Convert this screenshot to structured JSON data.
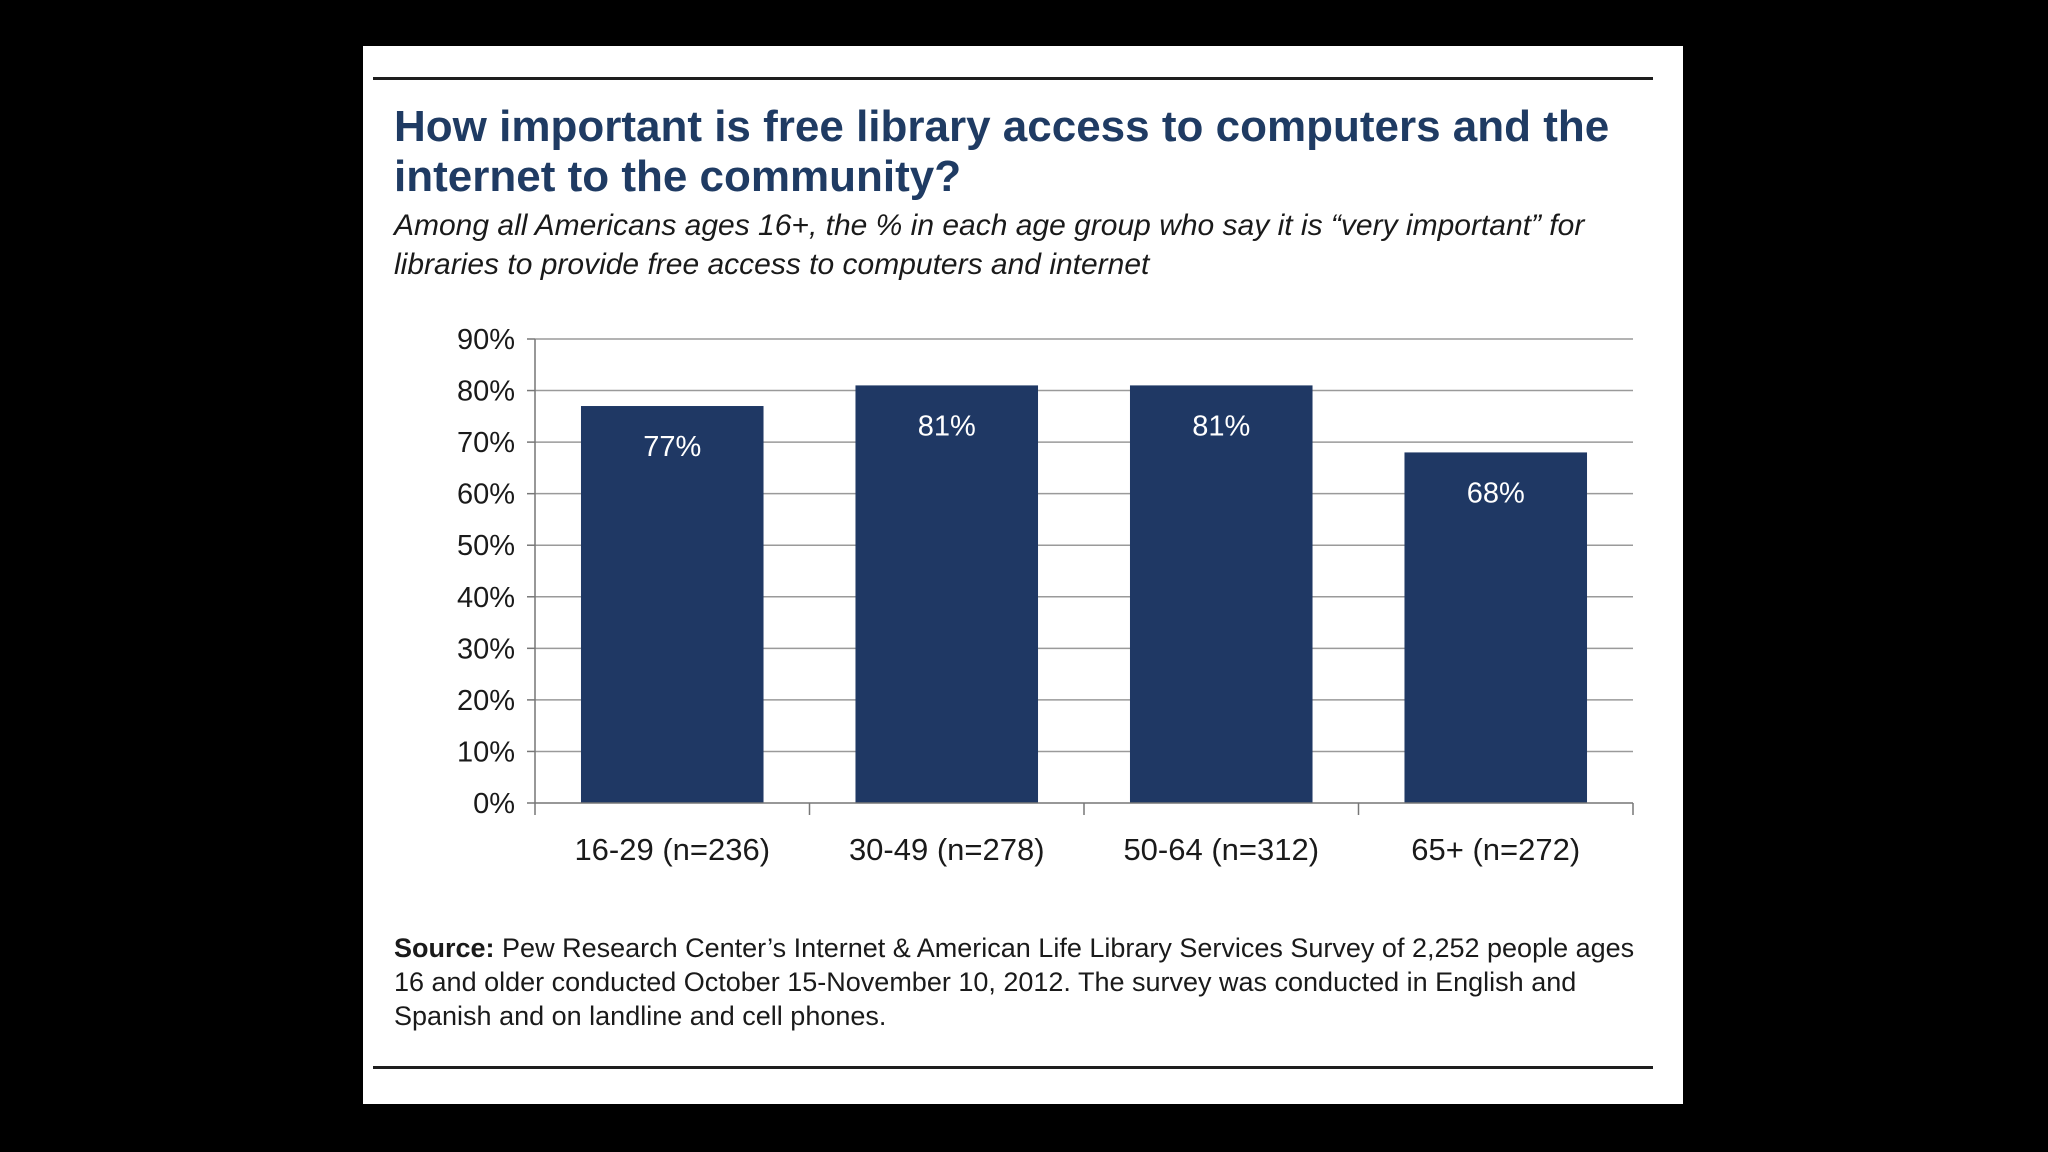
{
  "title": "How important is free library access to computers and the internet to the community?",
  "subtitle": "Among all Americans ages 16+, the % in each age group who say it is “very important” for libraries to provide free access to computers and internet",
  "source": {
    "label": "Source:",
    "text": "Pew Research Center’s Internet & American Life Library Services Survey of 2,252 people ages 16 and older conducted October 15-November 10, 2012. The survey was conducted in English and Spanish and on landline and cell phones."
  },
  "colors": {
    "bar": "#1f3864",
    "bar_label": "#ffffff",
    "title": "#1f3b63",
    "grid": "#9a9a9a"
  },
  "chart_data": {
    "type": "bar",
    "categories": [
      "16-29 (n=236)",
      "30-49 (n=278)",
      "50-64 (n=312)",
      "65+ (n=272)"
    ],
    "values": [
      77,
      81,
      81,
      68
    ],
    "data_labels": [
      "77%",
      "81%",
      "81%",
      "68%"
    ],
    "ylim": [
      0,
      90
    ],
    "yticks": [
      0,
      10,
      20,
      30,
      40,
      50,
      60,
      70,
      80,
      90
    ],
    "ytick_labels": [
      "0%",
      "10%",
      "20%",
      "30%",
      "40%",
      "50%",
      "60%",
      "70%",
      "80%",
      "90%"
    ],
    "title": "",
    "xlabel": "",
    "ylabel": "",
    "grid": true,
    "legend": "none"
  }
}
